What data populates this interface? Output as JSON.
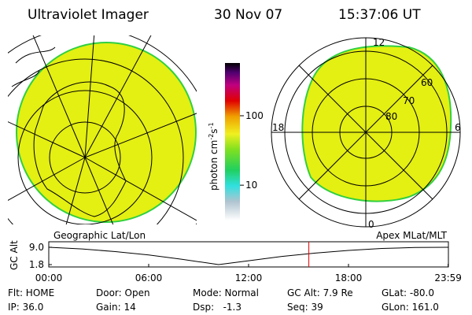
{
  "header": {
    "instrument": "Ultraviolet Imager",
    "date": "30 Nov 07",
    "time": "15:37:06 UT"
  },
  "colorbar": {
    "label": "photon cm",
    "label_sup1": "-2",
    "label_mid": "s",
    "label_sup2": "-1",
    "log": true,
    "lim": [
      3.1,
      575
    ],
    "ticks": [
      10,
      100
    ]
  },
  "polar_map": {
    "mlt_labels": {
      "top": "12",
      "bottom": "0",
      "left": "18",
      "right": "6"
    },
    "lat_labels": [
      "60",
      "70",
      "80"
    ]
  },
  "chart_data": {
    "type": "line",
    "title_left": "Geographic Lat/Lon",
    "title_right": "Apex MLat/MLT",
    "ylabel": "GC Alt",
    "x": [
      0,
      2,
      4,
      6,
      8,
      10,
      10.2,
      12,
      14,
      16,
      18,
      20,
      22,
      24
    ],
    "series": [
      {
        "name": "GC Alt",
        "color": "#000000",
        "values": [
          9.0,
          8.3,
          7.2,
          5.8,
          4.0,
          2.0,
          1.8,
          3.4,
          5.2,
          6.6,
          7.7,
          8.5,
          8.9,
          9.0
        ]
      }
    ],
    "xlim": [
      0,
      24
    ],
    "xticks": [
      {
        "value": 0,
        "label": "00:00"
      },
      {
        "value": 6,
        "label": "06:00"
      },
      {
        "value": 12,
        "label": "12:00"
      },
      {
        "value": 18,
        "label": "18:00"
      },
      {
        "value": 23.983,
        "label": "23:59"
      }
    ],
    "ylim": [
      1.8,
      9.0
    ],
    "yticks": [
      {
        "value": 1.8,
        "label": "1.8"
      },
      {
        "value": 9.0,
        "label": "9.0"
      }
    ],
    "marker_color": "#e00000"
  },
  "status": [
    [
      "Flt: HOME",
      "Door: Open",
      "Mode: Normal",
      "GC Alt: 7.9 Re",
      "GLat: -80.0"
    ],
    [
      "IP: 36.0",
      "Gain: 14",
      "Dsp:   -1.3",
      "Seq: 39",
      "GLon: 161.0"
    ]
  ]
}
